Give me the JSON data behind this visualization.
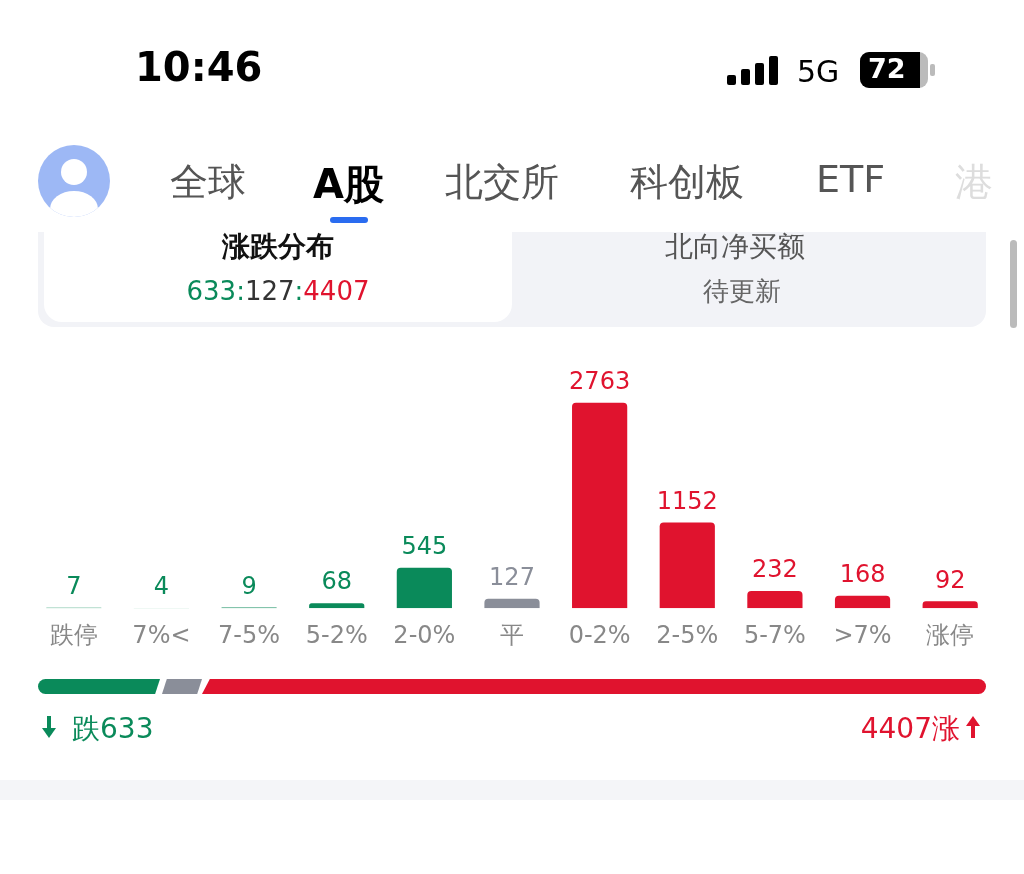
{
  "chart_data": {
    "type": "bar",
    "title": "涨跌分布",
    "subtitle": "633:127:4407",
    "categories": [
      "跌停",
      "7%<",
      "7-5%",
      "5-2%",
      "2-0%",
      "平",
      "0-2%",
      "2-5%",
      "5-7%",
      ">7%",
      "涨停"
    ],
    "values": [
      7,
      4,
      9,
      68,
      545,
      127,
      2763,
      1152,
      232,
      168,
      92
    ],
    "colors": [
      "#0a8a5a",
      "#0a8a5a",
      "#0a8a5a",
      "#0a8a5a",
      "#0a8a5a",
      "#8a8e99",
      "#e0132e",
      "#e0132e",
      "#e0132e",
      "#e0132e",
      "#e0132e"
    ],
    "data_labels": true,
    "grid": false,
    "legend": false,
    "annotations": [
      "10:46",
      "5G",
      "72",
      "全球",
      "A股",
      "北交所",
      "科创板",
      "ETF",
      "港",
      "北向净买额",
      "待更新",
      "跌633",
      "4407涨"
    ]
  }
}
